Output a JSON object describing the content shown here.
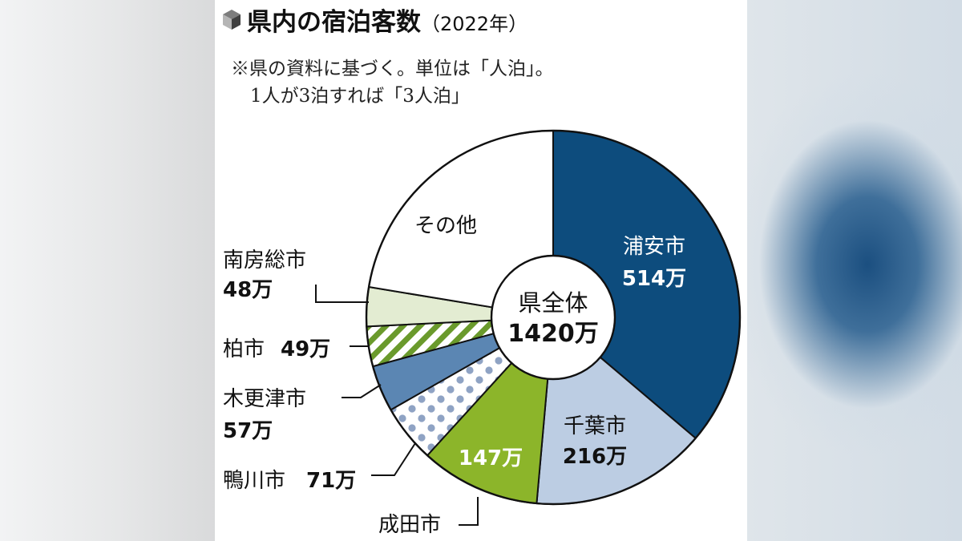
{
  "chart_data": {
    "type": "pie",
    "style": "donut",
    "title": "県内の宿泊客数",
    "title_suffix": "（2022年）",
    "note": [
      "※県の資料に基づく。単位は「人泊」。",
      "1人が3泊すれば「3人泊」"
    ],
    "center": {
      "label": "県全体",
      "value": "1420万"
    },
    "slices": [
      {
        "name": "浦安市",
        "value": 514,
        "value_label": "514万",
        "color": "#0d4c7d",
        "fill": "solid"
      },
      {
        "name": "千葉市",
        "value": 216,
        "value_label": "216万",
        "color": "#bccde3",
        "fill": "solid"
      },
      {
        "name": "成田市",
        "value": 147,
        "value_label": "147万",
        "color": "#8cb52a",
        "fill": "solid"
      },
      {
        "name": "鴨川市",
        "value": 71,
        "value_label": "71万",
        "color": "#8fa3c4",
        "fill": "dots"
      },
      {
        "name": "木更津市",
        "value": 57,
        "value_label": "57万",
        "color": "#5b86b3",
        "fill": "solid"
      },
      {
        "name": "柏市",
        "value": 49,
        "value_label": "49万",
        "color": "#6a9a2c",
        "fill": "stripes"
      },
      {
        "name": "南房総市",
        "value": 48,
        "value_label": "48万",
        "color": "#e3ecd2",
        "fill": "solid"
      },
      {
        "name": "その他",
        "value": 318,
        "value_label": "",
        "color": "#ffffff",
        "fill": "solid"
      }
    ],
    "total": 1420,
    "unit": "万"
  },
  "title_icon": "cube-icon"
}
